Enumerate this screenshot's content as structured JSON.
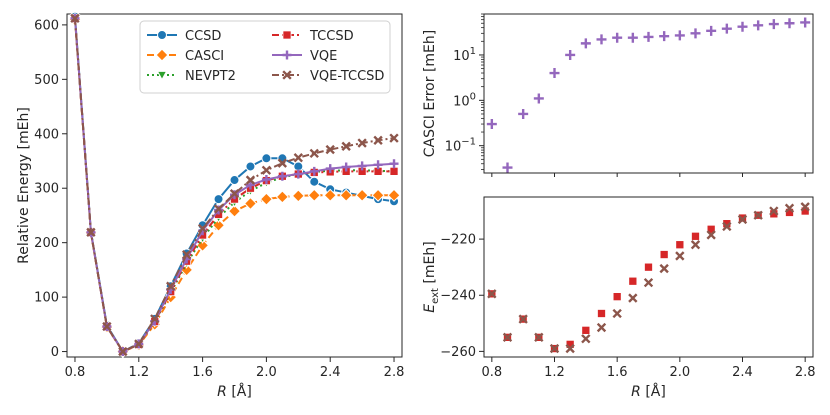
{
  "chart_data": [
    {
      "type": "line",
      "xlabel": "R [Å]",
      "ylabel": "Relative Energy [mEh]",
      "xlim": [
        0.75,
        2.85
      ],
      "ylim": [
        -10,
        620
      ],
      "xticks": [
        "0.8",
        "1.2",
        "1.6",
        "2.0",
        "2.4",
        "2.8"
      ],
      "yticks": [
        "0",
        "100",
        "200",
        "300",
        "400",
        "500",
        "600"
      ],
      "legend_placement": "top-center",
      "x": [
        0.8,
        0.9,
        1.0,
        1.1,
        1.2,
        1.3,
        1.4,
        1.5,
        1.6,
        1.7,
        1.8,
        1.9,
        2.0,
        2.1,
        2.2,
        2.3,
        2.4,
        2.5,
        2.6,
        2.7,
        2.8
      ],
      "series": [
        {
          "name": "CCSD",
          "color": "#1f77b4",
          "marker": "circle",
          "dash": "solid",
          "values": [
            615,
            220,
            48,
            0,
            15,
            60,
            120,
            180,
            232,
            280,
            315,
            340,
            355,
            355,
            340,
            312,
            298,
            292,
            286,
            280,
            276
          ]
        },
        {
          "name": "CASCI",
          "color": "#ff7f0e",
          "marker": "diamond",
          "dash": "dashed",
          "values": [
            610,
            218,
            45,
            0,
            12,
            50,
            100,
            150,
            195,
            232,
            258,
            272,
            280,
            284,
            286,
            287,
            287,
            287,
            287,
            287,
            287
          ]
        },
        {
          "name": "NEVPT2",
          "color": "#2ca02c",
          "marker": "triangle-down",
          "dash": "dotted",
          "values": [
            612,
            219,
            46,
            0,
            13,
            54,
            108,
            162,
            208,
            246,
            274,
            295,
            310,
            320,
            326,
            330,
            332,
            333,
            333,
            332,
            331
          ]
        },
        {
          "name": "TCCSD",
          "color": "#d62728",
          "marker": "square",
          "dash": "dashdot",
          "values": [
            612,
            219,
            46,
            0,
            13,
            55,
            110,
            166,
            214,
            252,
            280,
            300,
            314,
            322,
            326,
            329,
            330,
            331,
            331,
            331,
            331
          ]
        },
        {
          "name": "VQE",
          "color": "#9467bd",
          "marker": "plus",
          "dash": "solid",
          "values": [
            612,
            219,
            46,
            0,
            14,
            56,
            114,
            170,
            222,
            260,
            288,
            306,
            316,
            322,
            326,
            331,
            336,
            339,
            341,
            343,
            345
          ]
        },
        {
          "name": "VQE-TCCSD",
          "color": "#8c564b",
          "marker": "x",
          "dash": "dashdot",
          "values": [
            612,
            219,
            46,
            0,
            14,
            60,
            120,
            178,
            226,
            262,
            290,
            315,
            333,
            346,
            356,
            364,
            371,
            377,
            383,
            388,
            392
          ]
        }
      ]
    },
    {
      "type": "scatter",
      "xlabel": "",
      "ylabel": "CASCI Error [mEh]",
      "yscale": "log",
      "xlim": [
        0.75,
        2.85
      ],
      "ylim": [
        0.025,
        80
      ],
      "yticks": [
        "10^{-1}",
        "10^{0}",
        "10^{1}"
      ],
      "grid": false,
      "series": [
        {
          "name": "",
          "color": "#9467bd",
          "marker": "plus",
          "x": [
            0.8,
            0.9,
            1.0,
            1.1,
            1.2,
            1.3,
            1.4,
            1.5,
            1.6,
            1.7,
            1.8,
            1.9,
            2.0,
            2.1,
            2.2,
            2.3,
            2.4,
            2.5,
            2.6,
            2.7,
            2.8
          ],
          "values": [
            0.3,
            0.033,
            0.5,
            1.1,
            4,
            10,
            18,
            22,
            24,
            24,
            25,
            26,
            27,
            30,
            34,
            38,
            42,
            45,
            48,
            50,
            52
          ]
        }
      ]
    },
    {
      "type": "scatter",
      "xlabel": "R [Å]",
      "ylabel": "E_ext [mEh]",
      "xlim": [
        0.75,
        2.85
      ],
      "ylim": [
        -262,
        -205
      ],
      "xticks": [
        "0.8",
        "1.2",
        "1.6",
        "2.0",
        "2.4",
        "2.8"
      ],
      "yticks": [
        "−260",
        "−240",
        "−220"
      ],
      "grid": false,
      "series": [
        {
          "name": "",
          "color": "#d62728",
          "marker": "square",
          "x": [
            0.8,
            0.9,
            1.0,
            1.1,
            1.2,
            1.3,
            1.4,
            1.5,
            1.6,
            1.7,
            1.8,
            1.9,
            2.0,
            2.1,
            2.2,
            2.3,
            2.4,
            2.5,
            2.6,
            2.7,
            2.8
          ],
          "values": [
            -239.5,
            -255,
            -248.5,
            -255,
            -259,
            -257.5,
            -252.5,
            -246.5,
            -240.5,
            -235,
            -230,
            -225.5,
            -222,
            -219,
            -216.5,
            -214.5,
            -212.5,
            -211.5,
            -211,
            -210.5,
            -210
          ]
        },
        {
          "name": "",
          "color": "#8c564b",
          "marker": "x",
          "x": [
            0.8,
            0.9,
            1.0,
            1.1,
            1.2,
            1.3,
            1.4,
            1.5,
            1.6,
            1.7,
            1.8,
            1.9,
            2.0,
            2.1,
            2.2,
            2.3,
            2.4,
            2.5,
            2.6,
            2.7,
            2.8
          ],
          "values": [
            -239.5,
            -255,
            -248.5,
            -255,
            -259,
            -259,
            -255.5,
            -251.5,
            -246.5,
            -241,
            -235.5,
            -230.5,
            -226,
            -222,
            -218.5,
            -215.5,
            -213,
            -211.5,
            -210,
            -209,
            -208.5
          ]
        }
      ]
    }
  ]
}
